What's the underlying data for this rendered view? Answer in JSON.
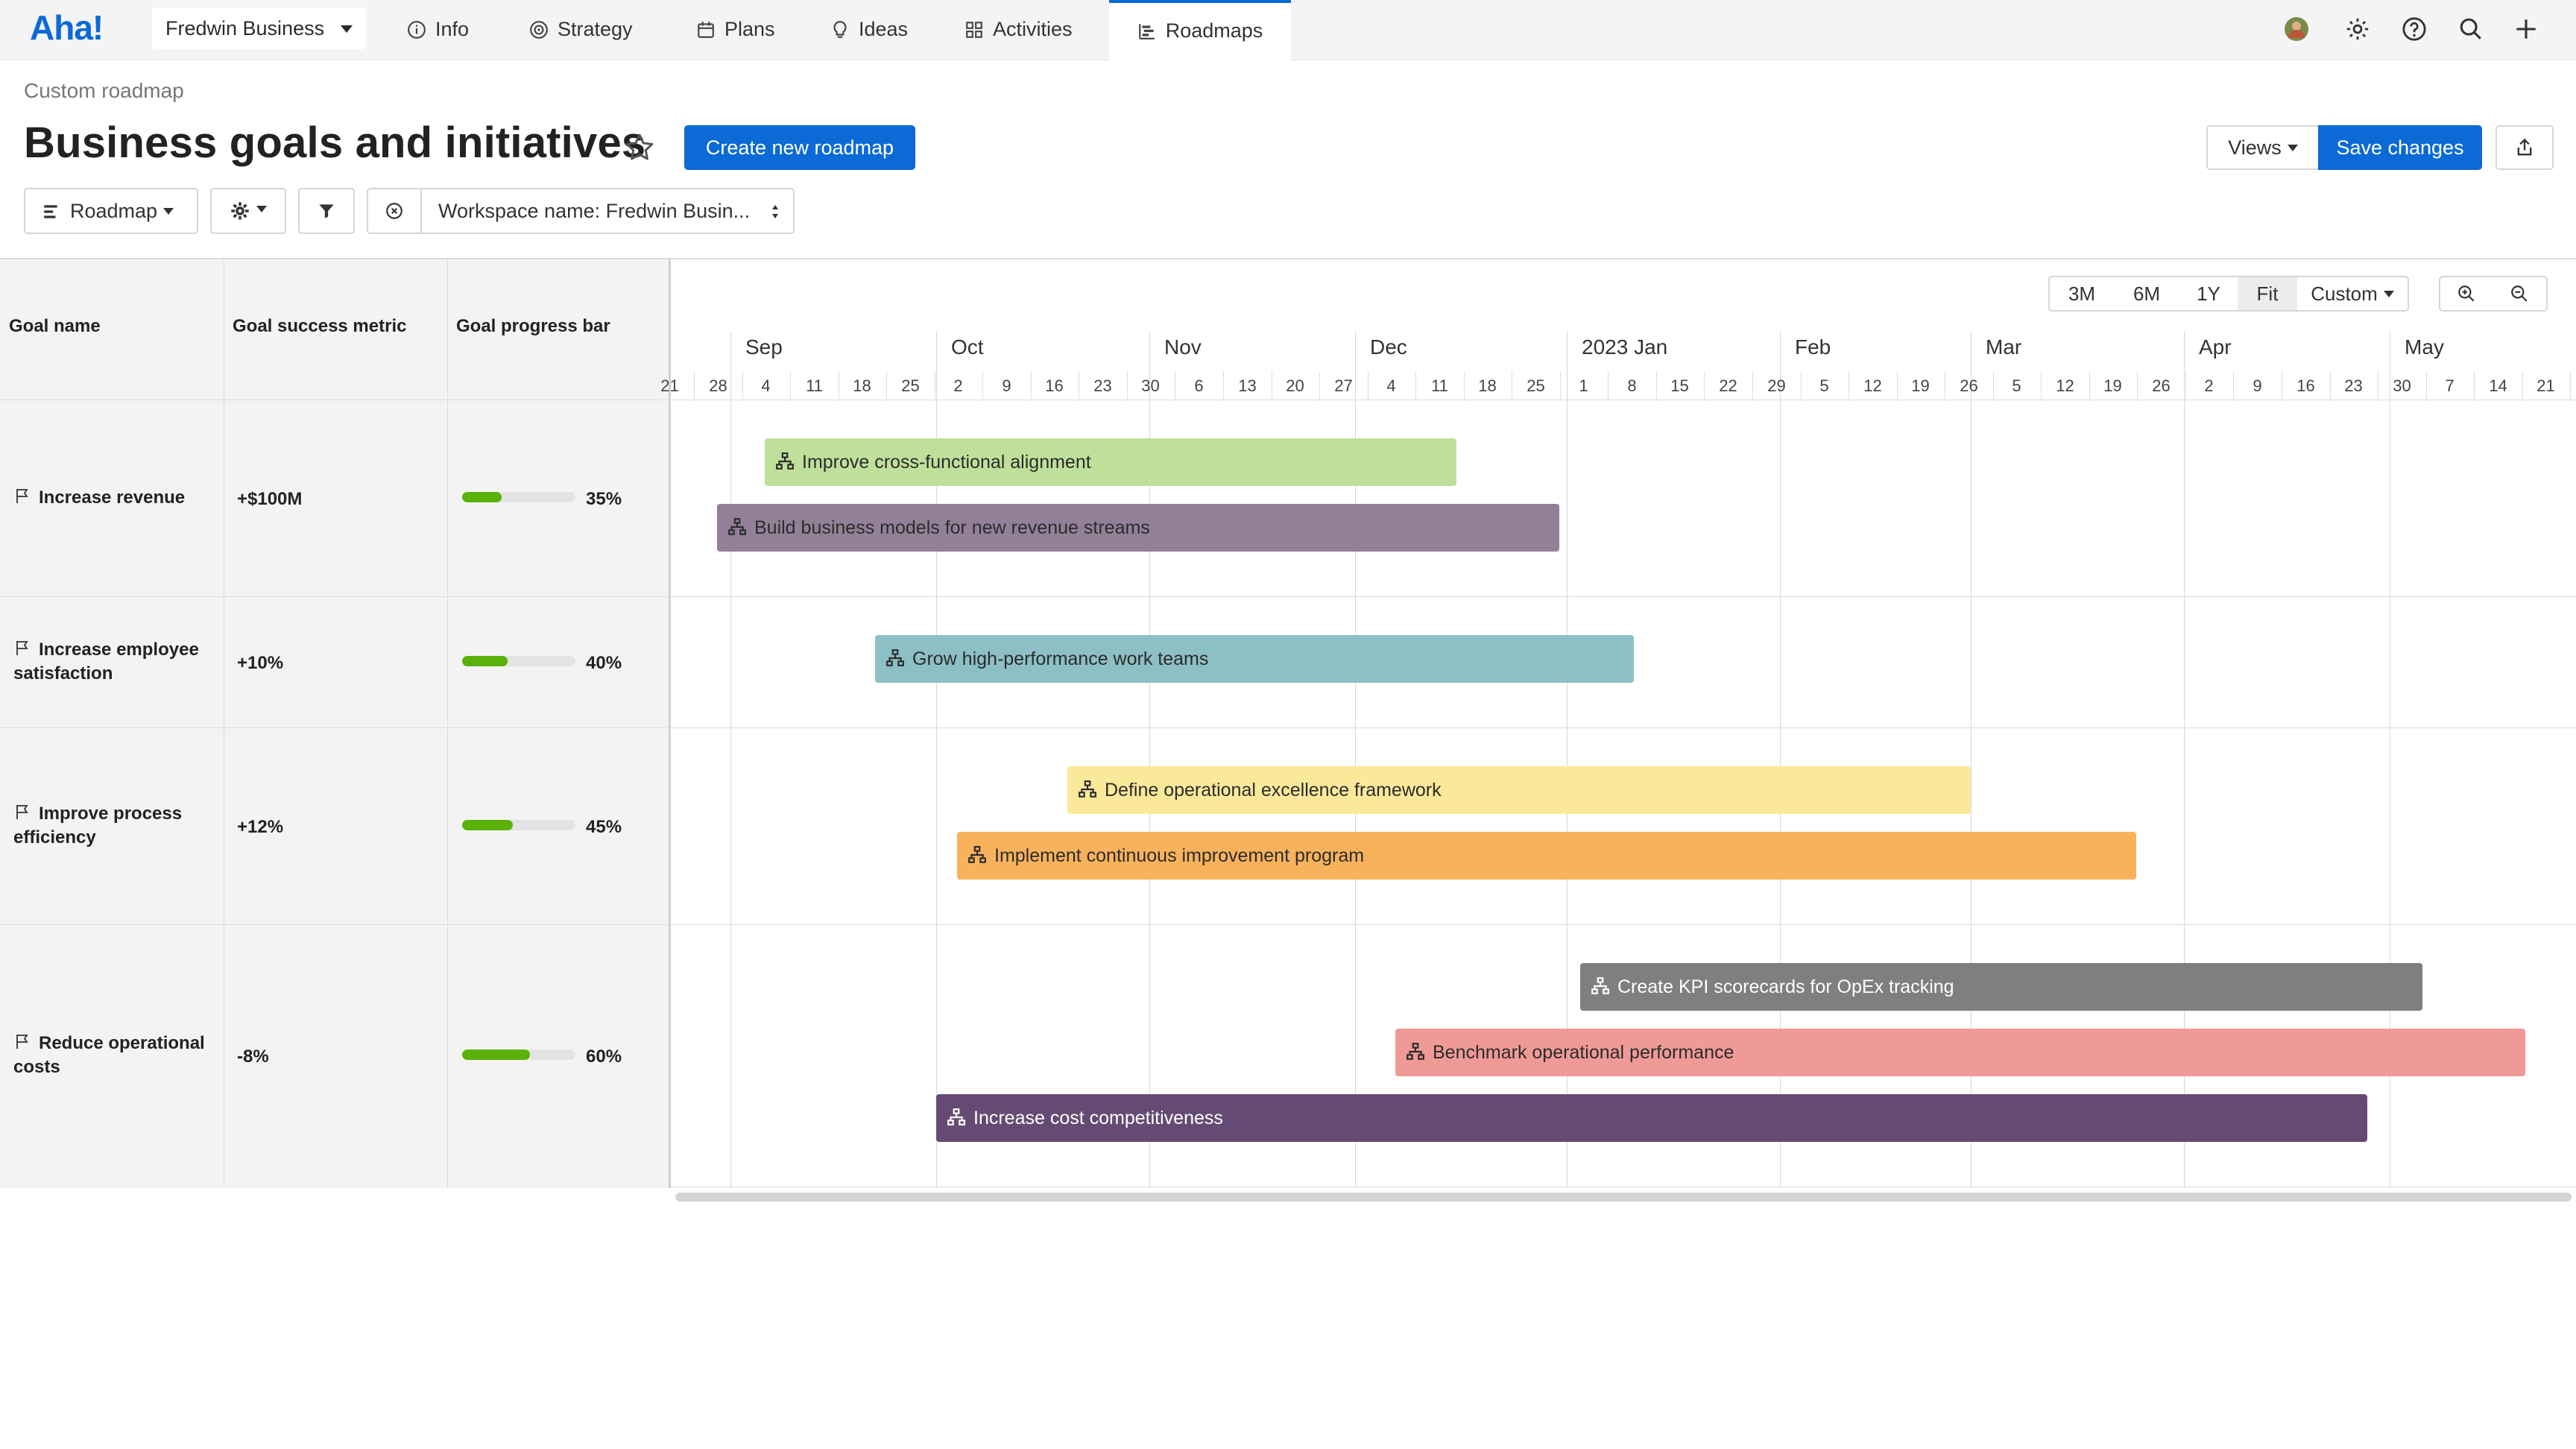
{
  "topnav": {
    "logo": "Aha!",
    "workspace": "Fredwin Business",
    "items": [
      {
        "label": "Info",
        "icon": "info-icon"
      },
      {
        "label": "Strategy",
        "icon": "target-icon"
      },
      {
        "label": "Plans",
        "icon": "calendar-icon"
      },
      {
        "label": "Ideas",
        "icon": "lightbulb-icon"
      },
      {
        "label": "Activities",
        "icon": "grid-icon"
      },
      {
        "label": "Roadmaps",
        "icon": "roadmap-icon",
        "active": true
      }
    ],
    "right_icons": [
      "avatar",
      "gear-icon",
      "help-icon",
      "search-icon",
      "plus-icon"
    ]
  },
  "header": {
    "subtitle": "Custom roadmap",
    "title": "Business goals and initiatives",
    "create_button": "Create new roadmap",
    "views_button": "Views",
    "save_button": "Save changes"
  },
  "toolbar": {
    "roadmap_button": "Roadmap",
    "filter_label": "Workspace name: Fredwin Busin..."
  },
  "timeline_controls": {
    "ranges": [
      "3M",
      "6M",
      "1Y",
      "Fit",
      "Custom"
    ],
    "selected": "Fit"
  },
  "table": {
    "columns": [
      "Goal name",
      "Goal success metric",
      "Goal progress bar"
    ],
    "rows": [
      {
        "name": "Increase revenue",
        "metric": "+$100M",
        "progress": 35,
        "progress_label": "35%"
      },
      {
        "name": "Increase employee satisfaction",
        "metric": "+10%",
        "progress": 40,
        "progress_label": "40%"
      },
      {
        "name": "Improve process efficiency",
        "metric": "+12%",
        "progress": 45,
        "progress_label": "45%"
      },
      {
        "name": "Reduce operational costs",
        "metric": "-8%",
        "progress": 60,
        "progress_label": "60%"
      }
    ]
  },
  "timeline": {
    "months": [
      "Sep",
      "Oct",
      "Nov",
      "Dec",
      "2023 Jan",
      "Feb",
      "Mar",
      "Apr",
      "May"
    ],
    "days": [
      "21",
      "28",
      "4",
      "11",
      "18",
      "25",
      "2",
      "9",
      "16",
      "23",
      "30",
      "6",
      "13",
      "20",
      "27",
      "4",
      "11",
      "18",
      "25",
      "1",
      "8",
      "15",
      "22",
      "29",
      "5",
      "12",
      "19",
      "26",
      "5",
      "12",
      "19",
      "26",
      "2",
      "9",
      "16",
      "23",
      "30",
      "7",
      "14",
      "21"
    ],
    "initiatives": [
      {
        "label": "Improve cross-functional alignment",
        "row": 0,
        "color": "#bfe09a",
        "text_color": "#2b2b2b"
      },
      {
        "label": "Build business models for new revenue streams",
        "row": 0,
        "color": "#938098",
        "text_color": "#2b2b2b"
      },
      {
        "label": "Grow high-performance work teams",
        "row": 1,
        "color": "#8cc0c4",
        "text_color": "#2b2b2b"
      },
      {
        "label": "Define operational excellence framework",
        "row": 2,
        "color": "#fbe99a",
        "text_color": "#2b2b2b"
      },
      {
        "label": "Implement continuous improvement program",
        "row": 2,
        "color": "#f8b25c",
        "text_color": "#2b2b2b"
      },
      {
        "label": "Create KPI scorecards for OpEx tracking",
        "row": 3,
        "color": "#7f7f7f",
        "text_color": "#ffffff"
      },
      {
        "label": "Benchmark operational performance",
        "row": 3,
        "color": "#ef9a96",
        "text_color": "#2b2b2b"
      },
      {
        "label": "Increase cost competitiveness",
        "row": 3,
        "color": "#654b73",
        "text_color": "#ffffff"
      }
    ]
  }
}
